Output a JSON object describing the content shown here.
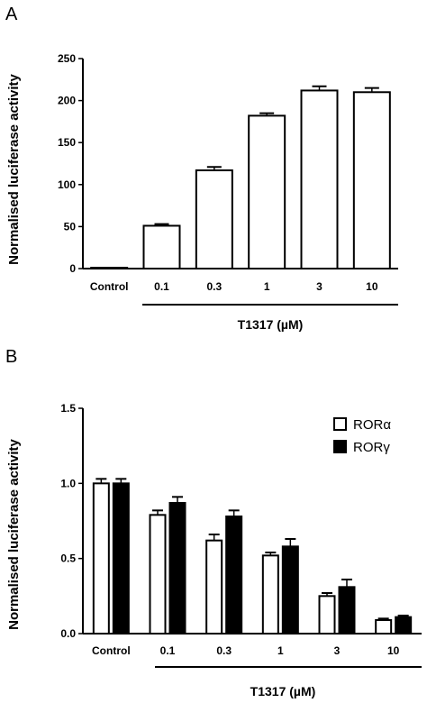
{
  "chart_data": [
    {
      "panel": "A",
      "type": "bar",
      "categories": [
        "Control",
        "0.1",
        "0.3",
        "1",
        "3",
        "10"
      ],
      "values": [
        1,
        51,
        117,
        182,
        212,
        210
      ],
      "errors": [
        0.5,
        2,
        4,
        3,
        5,
        5
      ],
      "ylabel": "Normalised luciferase activity",
      "xlabel": "T1317 (µM)",
      "ylim": [
        0,
        250
      ],
      "yticks": [
        "0",
        "50",
        "100",
        "150",
        "200",
        "250"
      ],
      "ytick_values": [
        0,
        50,
        100,
        150,
        200,
        250
      ],
      "grid": false
    },
    {
      "panel": "B",
      "type": "bar",
      "categories": [
        "Control",
        "0.1",
        "0.3",
        "1",
        "3",
        "10"
      ],
      "series": [
        {
          "name": "RORα",
          "color": "#ffffff",
          "values": [
            1.0,
            0.79,
            0.62,
            0.52,
            0.25,
            0.09
          ],
          "errors": [
            0.03,
            0.03,
            0.04,
            0.02,
            0.02,
            0.01
          ]
        },
        {
          "name": "RORγ",
          "color": "#000000",
          "values": [
            1.0,
            0.87,
            0.78,
            0.58,
            0.31,
            0.11
          ],
          "errors": [
            0.03,
            0.04,
            0.04,
            0.05,
            0.05,
            0.01
          ]
        }
      ],
      "ylabel": "Normalised luciferase activity",
      "xlabel": "T1317 (µM)",
      "ylim": [
        0,
        1.5
      ],
      "yticks": [
        "0.0",
        "0.5",
        "1.0",
        "1.5"
      ],
      "ytick_values": [
        0,
        0.5,
        1.0,
        1.5
      ],
      "legend_position": "top-right",
      "grid": false
    }
  ]
}
